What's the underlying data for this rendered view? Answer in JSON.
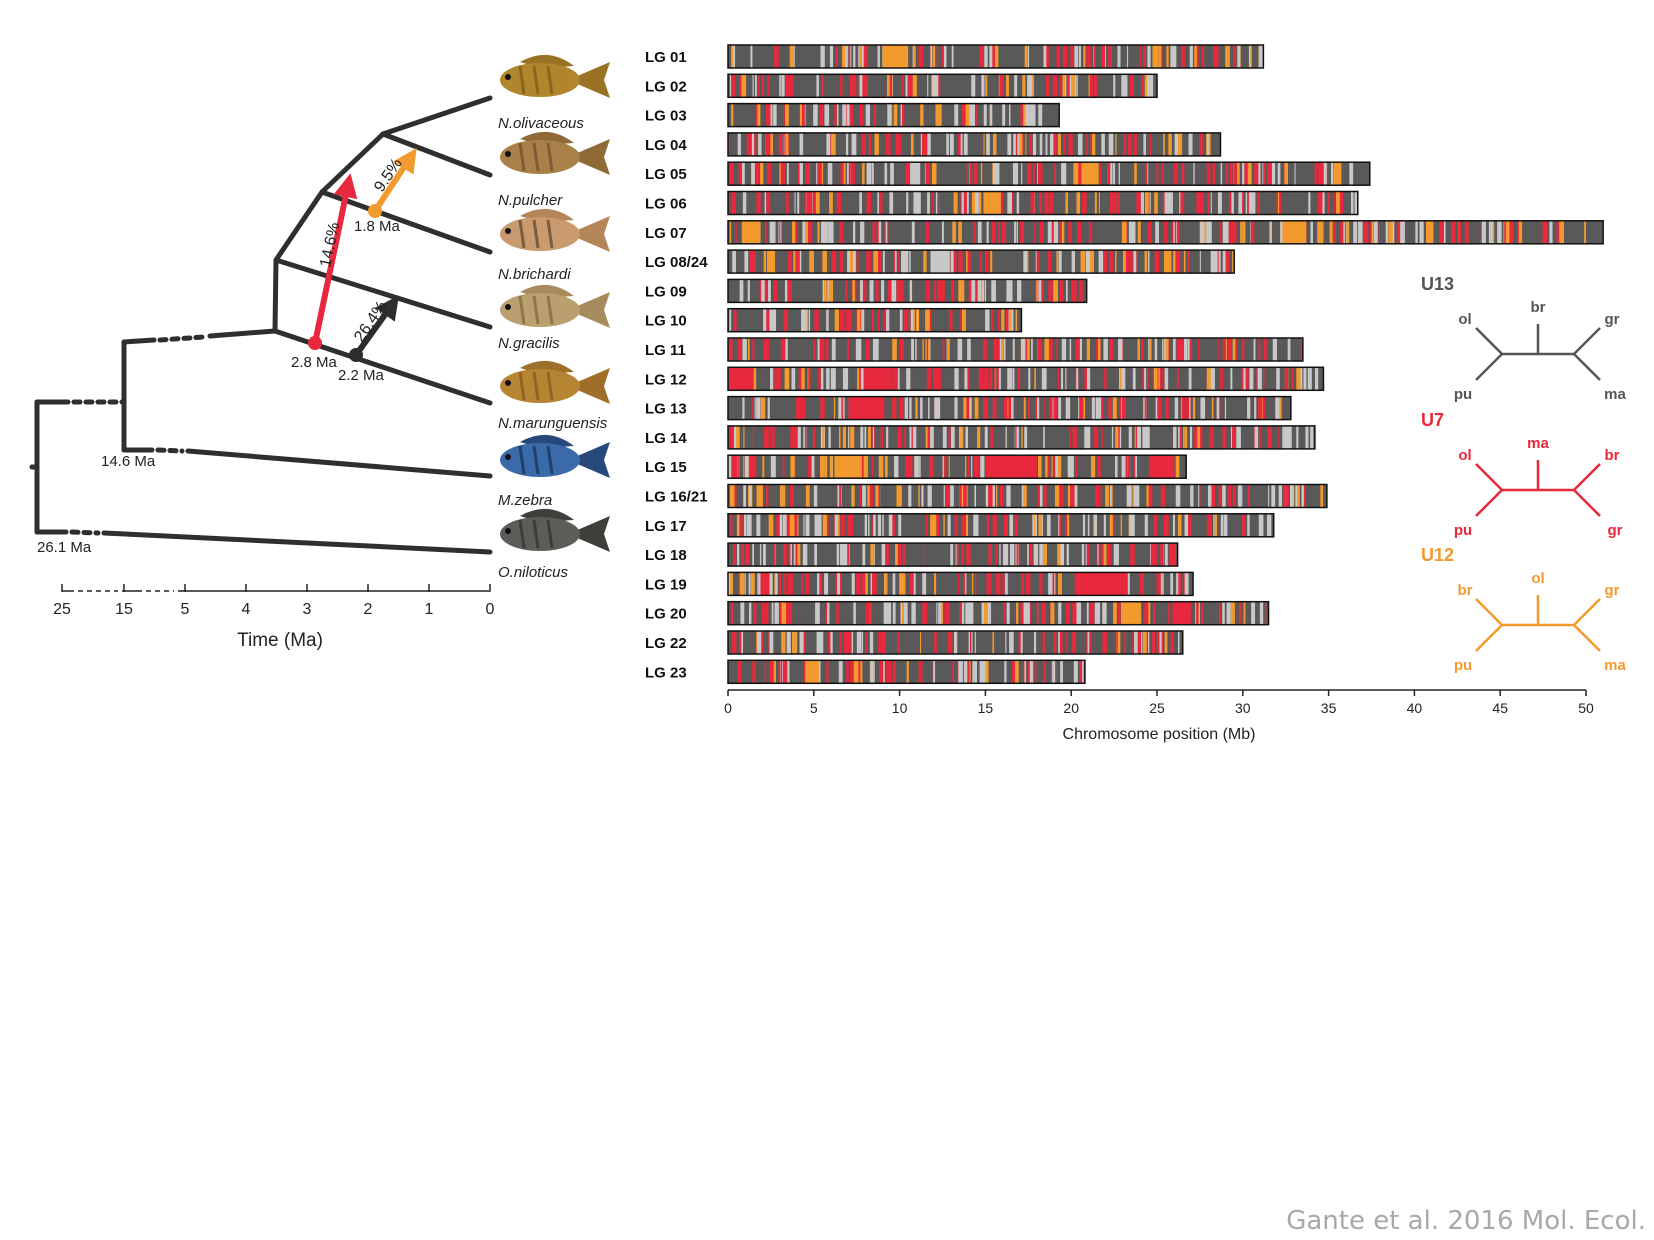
{
  "citation": "Gante et al. 2016 Mol. Ecol.",
  "tree": {
    "species": [
      "N.olivaceous",
      "N.pulcher",
      "N.brichardi",
      "N.gracilis",
      "N.marunguensis",
      "M.zebra",
      "O.niloticus"
    ],
    "node_labels": [
      "26.1 Ma",
      "14.6 Ma",
      "2.8 Ma",
      "2.2 Ma",
      "1.8 Ma"
    ],
    "introgression": [
      {
        "label": "14.6%",
        "color": "#e8283c"
      },
      {
        "label": "26.4%",
        "color": "#2d2d2d"
      },
      {
        "label": "9.5%",
        "color": "#f39a2e"
      }
    ],
    "time_ticks": [
      "25",
      "15",
      "5",
      "4",
      "3",
      "2",
      "1",
      "0"
    ],
    "time_axis_label": "Time (Ma)"
  },
  "topologies": [
    {
      "name": "U13",
      "color": "#555555",
      "tips": {
        "tl": "ol",
        "mid": "br",
        "tr": "gr",
        "bl": "pu",
        "br": "ma"
      }
    },
    {
      "name": "U7",
      "color": "#e8283c",
      "tips": {
        "tl": "ol",
        "mid": "ma",
        "tr": "br",
        "bl": "pu",
        "br": "gr"
      }
    },
    {
      "name": "U12",
      "color": "#f39a2e",
      "tips": {
        "tl": "br",
        "mid": "ol",
        "tr": "gr",
        "bl": "pu",
        "br": "ma"
      }
    }
  ],
  "chart_data": {
    "type": "bar",
    "xlabel": "Chromosome position (Mb)",
    "xlim": [
      0,
      50
    ],
    "xticks": [
      0,
      5,
      10,
      15,
      20,
      25,
      30,
      35,
      40,
      45,
      50
    ],
    "colors": {
      "base": "#595959",
      "U7": "#e8283c",
      "U12": "#f39a2e",
      "other": "#c8c8c8"
    },
    "categories": [
      "LG 01",
      "LG 02",
      "LG 03",
      "LG 04",
      "LG 05",
      "LG 06",
      "LG 07",
      "LG 08/24",
      "LG 09",
      "LG 10",
      "LG 11",
      "LG 12",
      "LG 13",
      "LG 14",
      "LG 15",
      "LG 16/21",
      "LG 17",
      "LG 18",
      "LG 19",
      "LG 20",
      "LG 22",
      "LG 23"
    ],
    "lengths": [
      31.2,
      25.0,
      19.3,
      28.7,
      37.4,
      36.7,
      51.0,
      29.5,
      20.9,
      17.1,
      33.5,
      34.7,
      32.8,
      34.2,
      26.7,
      34.9,
      31.8,
      26.2,
      27.1,
      31.5,
      26.5,
      20.8
    ],
    "wide_blocks": [
      {
        "chrom": "LG 01",
        "start": 9.0,
        "end": 10.5,
        "type": "U12"
      },
      {
        "chrom": "LG 05",
        "start": 20.6,
        "end": 21.6,
        "type": "U12"
      },
      {
        "chrom": "LG 06",
        "start": 14.9,
        "end": 15.9,
        "type": "U12"
      },
      {
        "chrom": "LG 07",
        "start": 32.3,
        "end": 33.7,
        "type": "U12"
      },
      {
        "chrom": "LG 07",
        "start": 0.8,
        "end": 1.9,
        "type": "U12"
      },
      {
        "chrom": "LG 08/24",
        "start": 11.8,
        "end": 12.9,
        "type": "other"
      },
      {
        "chrom": "LG 12",
        "start": 7.9,
        "end": 9.6,
        "type": "U7"
      },
      {
        "chrom": "LG 12",
        "start": 0.1,
        "end": 1.5,
        "type": "U7"
      },
      {
        "chrom": "LG 13",
        "start": 7.3,
        "end": 9.0,
        "type": "U7"
      },
      {
        "chrom": "LG 15",
        "start": 6.2,
        "end": 7.8,
        "type": "U12"
      },
      {
        "chrom": "LG 15",
        "start": 15.0,
        "end": 18.0,
        "type": "U7"
      },
      {
        "chrom": "LG 15",
        "start": 24.7,
        "end": 26.0,
        "type": "U7"
      },
      {
        "chrom": "LG 19",
        "start": 20.2,
        "end": 23.3,
        "type": "U7"
      },
      {
        "chrom": "LG 20",
        "start": 22.9,
        "end": 24.0,
        "type": "U12"
      },
      {
        "chrom": "LG 20",
        "start": 25.9,
        "end": 27.0,
        "type": "U7"
      },
      {
        "chrom": "LG 23",
        "start": 4.5,
        "end": 5.3,
        "type": "U12"
      }
    ]
  }
}
